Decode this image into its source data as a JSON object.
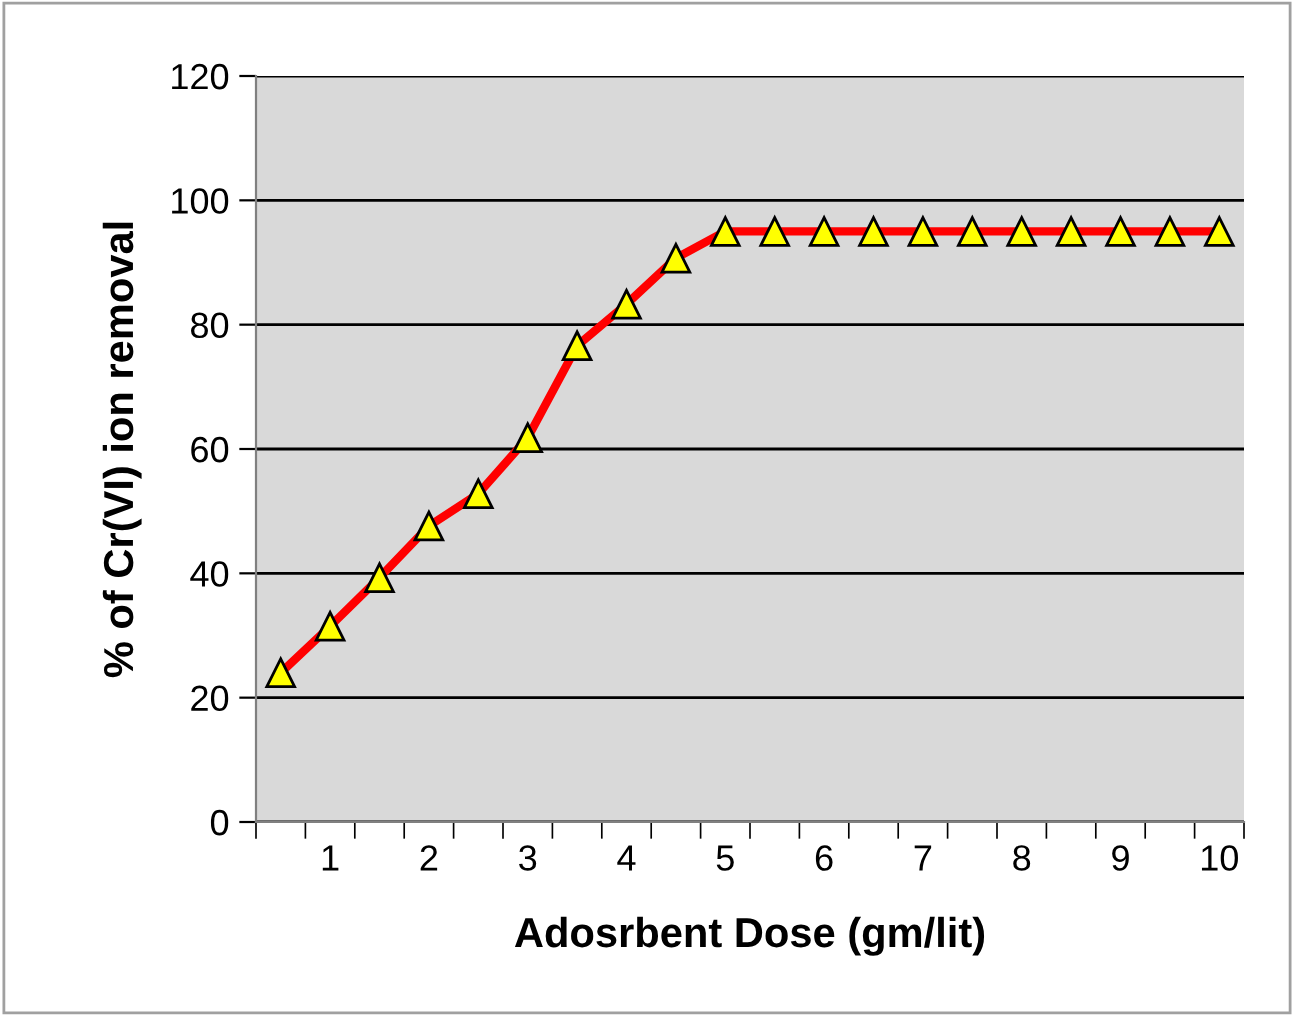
{
  "chart_data": {
    "type": "line",
    "xlabel": "Adosrbent Dose (gm/lit)",
    "ylabel": "% of Cr(VI) ion removal",
    "categories": [
      null,
      "1",
      null,
      "2",
      null,
      "3",
      null,
      "4",
      null,
      "5",
      null,
      "6",
      null,
      "7",
      null,
      "8",
      null,
      "9",
      null,
      "10"
    ],
    "series": [
      {
        "color": "#ff0000",
        "values": [
          24,
          31.5,
          39.3,
          47.6,
          52.8,
          61.8,
          76.6,
          83.3,
          90.7,
          95,
          95,
          95,
          95,
          95,
          95,
          95,
          95,
          95,
          95,
          95
        ]
      }
    ],
    "ylim": [
      0,
      120
    ],
    "yticks": [
      0,
      20,
      40,
      60,
      80,
      100,
      120
    ],
    "grid": "y",
    "marker": "triangle",
    "line_style": "solid"
  }
}
